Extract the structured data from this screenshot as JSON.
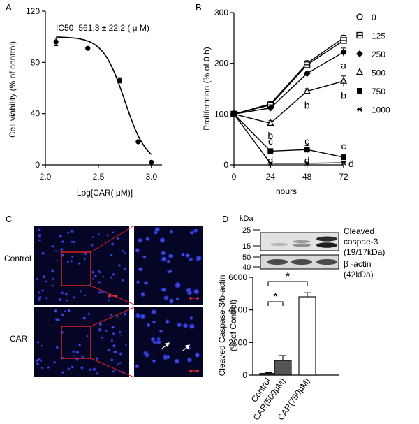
{
  "figure": {
    "panel_letters": [
      "A",
      "B",
      "C",
      "D"
    ]
  },
  "chart_data": [
    {
      "panel": "A",
      "type": "scatter",
      "xlabel": "Log[CAR( μM)]",
      "ylabel": "Cell viability (% of control)",
      "annotation": "IC50=561.3 ± 22.2 ( μ M)",
      "xlim": [
        2.0,
        3.1
      ],
      "ylim": [
        0,
        120
      ],
      "xticks": [
        {
          "value": 2.0,
          "label": "2.0"
        },
        {
          "value": 2.5,
          "label": "2.5"
        },
        {
          "value": 3.0,
          "label": "3.0"
        }
      ],
      "yticks": [
        0,
        40,
        80,
        120
      ],
      "grid": false,
      "points": [
        {
          "x": 2.1,
          "y": 96,
          "err": 3
        },
        {
          "x": 2.4,
          "y": 91,
          "err": 0
        },
        {
          "x": 2.7,
          "y": 66,
          "err": 2
        },
        {
          "x": 2.875,
          "y": 18,
          "err": 0
        },
        {
          "x": 3.0,
          "y": 2,
          "err": 0
        }
      ],
      "fit": {
        "top": 100,
        "bottom": 0,
        "logIC50": 2.749,
        "hill": -4.2
      }
    },
    {
      "panel": "B",
      "type": "line",
      "xlabel": "hours",
      "ylabel": "Proliferation (% of 0 h)",
      "x": [
        0,
        24,
        48,
        72
      ],
      "xlim": [
        0,
        72
      ],
      "ylim": [
        0,
        300
      ],
      "yticks": [
        0,
        100,
        200,
        300
      ],
      "grid": false,
      "legend_position": "right",
      "series": [
        {
          "name": "0",
          "marker": "circle",
          "values": [
            100,
            120,
            200,
            250
          ],
          "err": [
            3,
            3,
            5,
            5
          ]
        },
        {
          "name": "125",
          "marker": "square-open",
          "values": [
            100,
            118,
            197,
            245
          ],
          "err": [
            3,
            3,
            5,
            5
          ]
        },
        {
          "name": "250",
          "marker": "diamond",
          "values": [
            100,
            112,
            180,
            222
          ],
          "err": [
            3,
            3,
            5,
            8
          ]
        },
        {
          "name": "500",
          "marker": "triangle",
          "values": [
            100,
            82,
            145,
            165
          ],
          "err": [
            3,
            5,
            5,
            10
          ]
        },
        {
          "name": "750",
          "marker": "square",
          "values": [
            100,
            27,
            30,
            15
          ],
          "err": [
            3,
            4,
            8,
            4
          ]
        },
        {
          "name": "1000",
          "marker": "star",
          "values": [
            100,
            3,
            3,
            4
          ],
          "err": [
            3,
            2,
            2,
            2
          ]
        }
      ],
      "letter_annotations": [
        {
          "text": "b",
          "x": 24,
          "y": 58
        },
        {
          "text": "a",
          "x": 72,
          "y": 196
        },
        {
          "text": "b",
          "x": 48,
          "y": 118
        },
        {
          "text": "b",
          "x": 72,
          "y": 137
        },
        {
          "text": "c",
          "x": 24,
          "y": 47
        },
        {
          "text": "c",
          "x": 48,
          "y": 47
        },
        {
          "text": "c",
          "x": 72,
          "y": 37
        },
        {
          "text": "d",
          "x": 24,
          "y": 9
        },
        {
          "text": "d",
          "x": 48,
          "y": 9
        },
        {
          "text": "d",
          "x": 77,
          "y": 3
        }
      ]
    },
    {
      "panel": "D",
      "type": "bar",
      "ylabel": "Cleaved Caspase-3/b-actin\n(% of Control)",
      "categories": [
        "Control",
        "CAR(500μM)",
        "CAR(750μM)"
      ],
      "values": [
        100,
        900,
        4800
      ],
      "err": [
        50,
        300,
        250
      ],
      "colors": [
        "#3a3a3a",
        "#555555",
        "#ffffff"
      ],
      "ylim": [
        0,
        6000
      ],
      "yticks": [
        0,
        2000,
        4000,
        6000
      ],
      "grid": false,
      "significance": [
        {
          "from": 0,
          "to": 1,
          "label": "*"
        },
        {
          "from": 0,
          "to": 2,
          "label": "*"
        }
      ]
    }
  ],
  "panel_c": {
    "row_labels": [
      "Control",
      "CAR"
    ]
  },
  "western_blot": {
    "kda_label": "kDa",
    "markers": [
      "25",
      "15",
      "50",
      "40"
    ],
    "protein_labels": [
      {
        "line1": "Cleaved",
        "line2": "caspae-3",
        "line3": "(19/17kDa)"
      },
      {
        "line1": "β -actin",
        "line2": "(42kDa)"
      }
    ]
  }
}
